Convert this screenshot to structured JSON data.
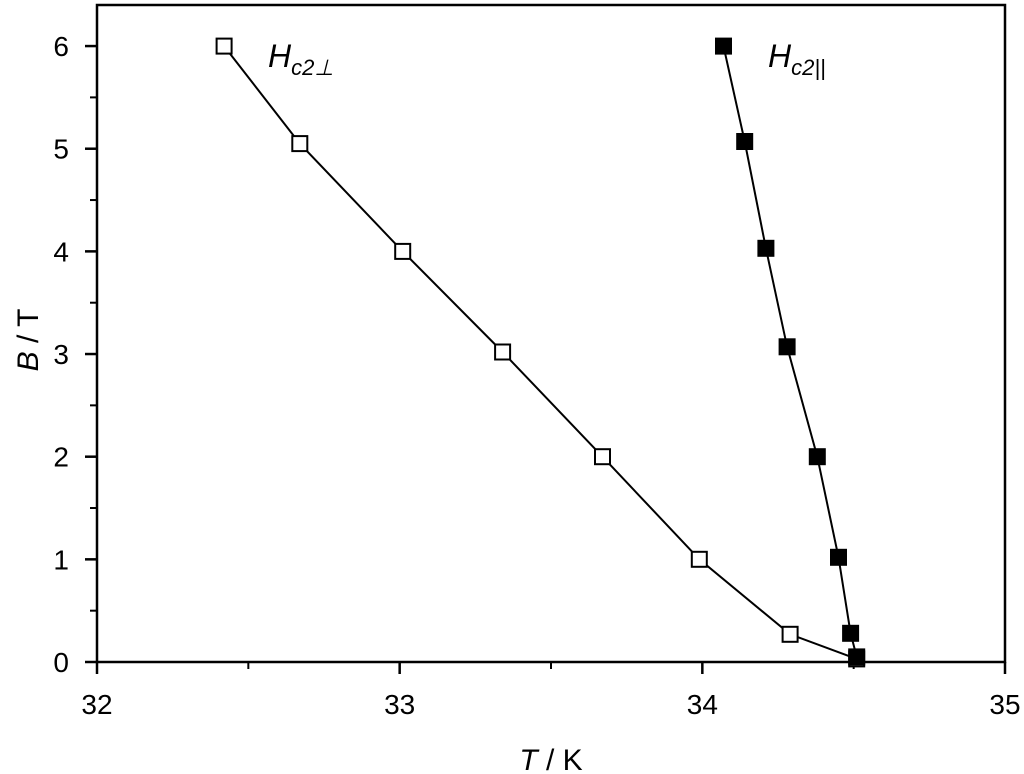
{
  "chart_data": {
    "type": "scatter",
    "title": "",
    "xlabel": {
      "symbol": "T",
      "unit": " / K"
    },
    "ylabel": {
      "symbol": "B",
      "unit": " / T"
    },
    "xlim": [
      32,
      35
    ],
    "ylim": [
      0,
      6.4
    ],
    "xticks": [
      32,
      33,
      34,
      35
    ],
    "yticks": [
      0,
      1,
      2,
      3,
      4,
      5,
      6
    ],
    "x_minor_step": 0.5,
    "y_minor_step": 0.5,
    "grid": false,
    "series": [
      {
        "name": "Hc2⊥",
        "label_main": "H",
        "label_sub": "c2⊥",
        "marker": "open-square",
        "connected": true,
        "color": "#000000",
        "points": [
          [
            32.42,
            6.0
          ],
          [
            32.67,
            5.05
          ],
          [
            33.01,
            4.0
          ],
          [
            33.34,
            3.02
          ],
          [
            33.67,
            2.0
          ],
          [
            33.99,
            1.0
          ],
          [
            34.29,
            0.27
          ],
          [
            34.51,
            0.03
          ]
        ]
      },
      {
        "name": "Hc2||",
        "label_main": "H",
        "label_sub": "c2||",
        "marker": "filled-square",
        "connected": true,
        "color": "#000000",
        "points": [
          [
            34.07,
            6.0
          ],
          [
            34.14,
            5.07
          ],
          [
            34.21,
            4.03
          ],
          [
            34.28,
            3.07
          ],
          [
            34.38,
            2.0
          ],
          [
            34.45,
            1.02
          ],
          [
            34.49,
            0.28
          ],
          [
            34.51,
            0.05
          ]
        ]
      }
    ]
  }
}
